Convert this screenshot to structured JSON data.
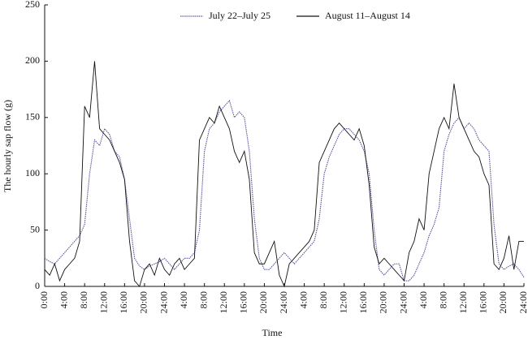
{
  "chart_data": {
    "type": "line",
    "ylabel": "The hourly sap flow (g)",
    "xlabel": "Time",
    "x": [
      0,
      1,
      2,
      3,
      4,
      5,
      6,
      7,
      8,
      9,
      10,
      11,
      12,
      13,
      14,
      15,
      16,
      17,
      18,
      19,
      20,
      21,
      22,
      23,
      24,
      25,
      26,
      27,
      28,
      29,
      30,
      31,
      32,
      33,
      34,
      35,
      36,
      37,
      38,
      39,
      40,
      41,
      42,
      43,
      44,
      45,
      46,
      47,
      48,
      49,
      50,
      51,
      52,
      53,
      54,
      55,
      56,
      57,
      58,
      59,
      60,
      61,
      62,
      63,
      64,
      65,
      66,
      67,
      68,
      69,
      70,
      71,
      72,
      73,
      74,
      75,
      76,
      77,
      78,
      79,
      80,
      81,
      82,
      83,
      84,
      85,
      86,
      87,
      88,
      89,
      90,
      91,
      92,
      93,
      94,
      95,
      96
    ],
    "series": [
      {
        "name": "July 22–July 25",
        "color": "#55559a",
        "dash": true,
        "values": [
          25,
          22,
          20,
          25,
          30,
          35,
          40,
          45,
          55,
          100,
          130,
          125,
          140,
          135,
          120,
          115,
          95,
          60,
          25,
          18,
          15,
          18,
          20,
          22,
          25,
          20,
          15,
          20,
          25,
          25,
          30,
          50,
          120,
          140,
          145,
          155,
          160,
          165,
          150,
          155,
          150,
          120,
          60,
          25,
          15,
          15,
          20,
          25,
          30,
          25,
          20,
          25,
          30,
          35,
          40,
          60,
          100,
          115,
          125,
          135,
          140,
          140,
          135,
          130,
          120,
          100,
          50,
          15,
          10,
          15,
          20,
          20,
          5,
          5,
          10,
          20,
          30,
          45,
          55,
          70,
          120,
          135,
          145,
          150,
          140,
          145,
          140,
          130,
          125,
          120,
          55,
          20,
          15,
          18,
          20,
          15,
          8
        ]
      },
      {
        "name": "August 11–August 14",
        "color": "#111111",
        "dash": false,
        "values": [
          15,
          10,
          20,
          5,
          15,
          20,
          25,
          40,
          160,
          150,
          200,
          140,
          135,
          130,
          120,
          110,
          95,
          40,
          5,
          0,
          15,
          20,
          10,
          25,
          15,
          10,
          20,
          25,
          15,
          20,
          25,
          130,
          140,
          150,
          145,
          160,
          150,
          140,
          120,
          110,
          120,
          95,
          30,
          20,
          20,
          30,
          40,
          10,
          0,
          20,
          25,
          30,
          35,
          40,
          50,
          110,
          120,
          130,
          140,
          145,
          140,
          135,
          130,
          140,
          125,
          90,
          35,
          20,
          25,
          20,
          15,
          10,
          5,
          30,
          40,
          60,
          50,
          100,
          120,
          140,
          150,
          140,
          180,
          150,
          140,
          130,
          120,
          115,
          100,
          90,
          20,
          15,
          25,
          45,
          15,
          40,
          40
        ]
      }
    ],
    "xlim": [
      0,
      96
    ],
    "xticks": [
      {
        "value": 0,
        "label": "0:00"
      },
      {
        "value": 4,
        "label": "4:00"
      },
      {
        "value": 8,
        "label": "8:00"
      },
      {
        "value": 12,
        "label": "12:00"
      },
      {
        "value": 16,
        "label": "16:00"
      },
      {
        "value": 20,
        "label": "20:00"
      },
      {
        "value": 24,
        "label": "24:00"
      },
      {
        "value": 28,
        "label": "4:00"
      },
      {
        "value": 32,
        "label": "8:00"
      },
      {
        "value": 36,
        "label": "12:00"
      },
      {
        "value": 40,
        "label": "16:00"
      },
      {
        "value": 44,
        "label": "20:00"
      },
      {
        "value": 48,
        "label": "24:00"
      },
      {
        "value": 52,
        "label": "4:00"
      },
      {
        "value": 56,
        "label": "8:00"
      },
      {
        "value": 60,
        "label": "12:00"
      },
      {
        "value": 64,
        "label": "16:00"
      },
      {
        "value": 68,
        "label": "20:00"
      },
      {
        "value": 72,
        "label": "24:00"
      },
      {
        "value": 76,
        "label": "4:00"
      },
      {
        "value": 80,
        "label": "8:00"
      },
      {
        "value": 84,
        "label": "12:00"
      },
      {
        "value": 88,
        "label": "16:00"
      },
      {
        "value": 92,
        "label": "20:00"
      },
      {
        "value": 96,
        "label": "24:00"
      }
    ],
    "ylim": [
      0,
      250
    ],
    "yticks": [
      0,
      50,
      100,
      150,
      200,
      250
    ]
  }
}
